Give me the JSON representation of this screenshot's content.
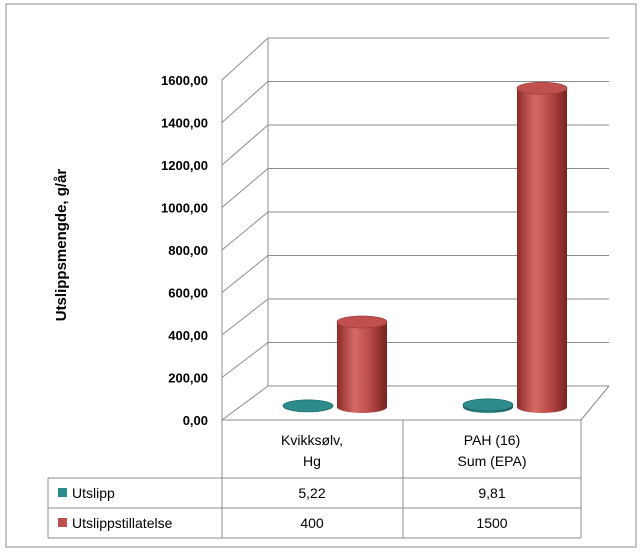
{
  "chart_data": {
    "type": "bar",
    "ylabel": "Utslippsmengde, g/år",
    "ylim": [
      0,
      1600
    ],
    "yticks": [
      "0,00",
      "200,00",
      "400,00",
      "600,00",
      "800,00",
      "1000,00",
      "1200,00",
      "1400,00",
      "1600,00"
    ],
    "categories": [
      {
        "line1": "Kvikksølv,",
        "line2": "Hg"
      },
      {
        "line1": "PAH (16)",
        "line2": "Sum (EPA)"
      }
    ],
    "series": [
      {
        "name": "Utslipp",
        "values": [
          5.22,
          9.81
        ],
        "labels": [
          "5,22",
          "9,81"
        ],
        "color": "#2e8b8b"
      },
      {
        "name": "Utslippstillatelse",
        "values": [
          400,
          1500
        ],
        "labels": [
          "400",
          "1500"
        ],
        "color": "#c0504d"
      }
    ],
    "grid": true,
    "legend": "data-table"
  }
}
